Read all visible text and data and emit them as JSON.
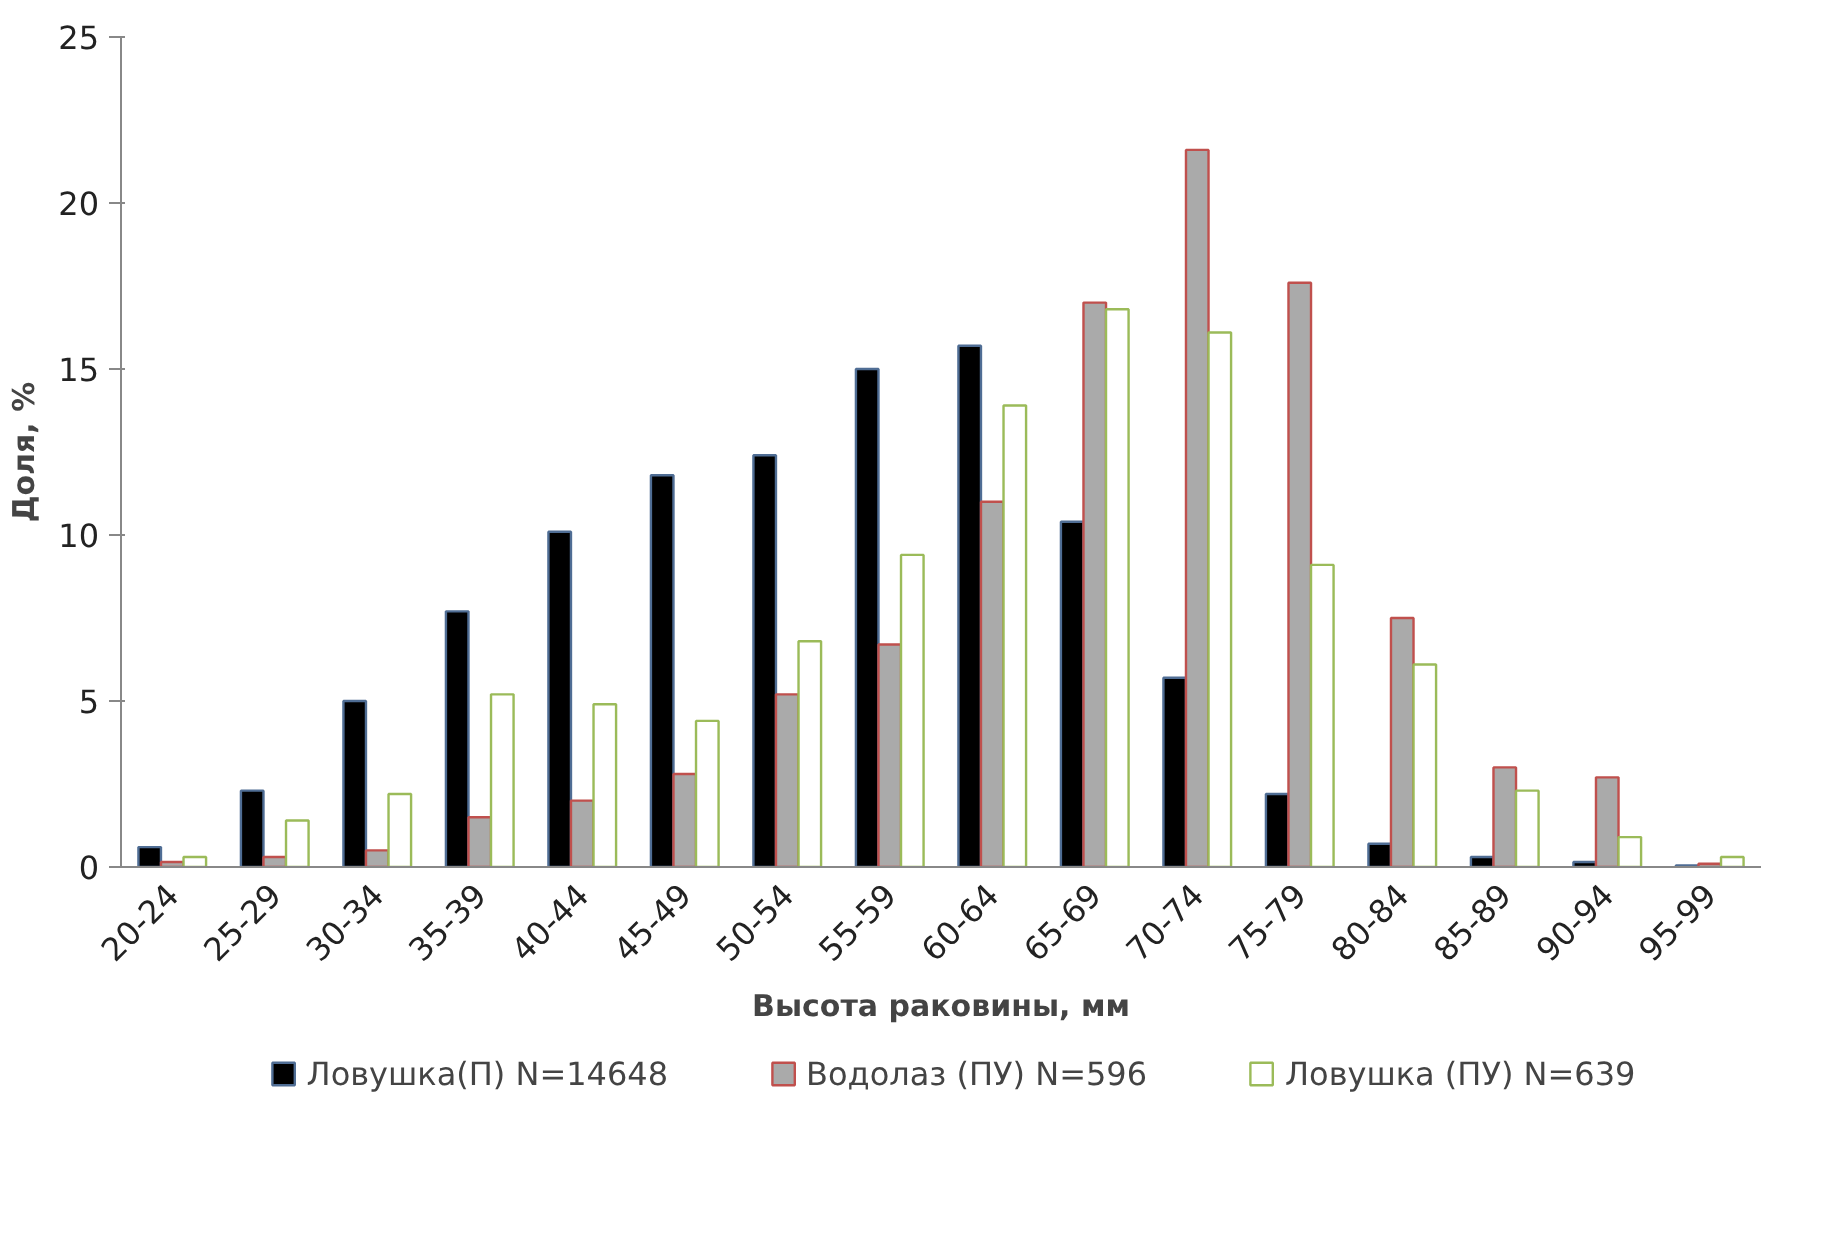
{
  "chart_data": {
    "type": "bar",
    "xlabel": "Высота раковины, мм",
    "ylabel": "Доля, %",
    "categories": [
      "20-24",
      "25-29",
      "30-34",
      "35-39",
      "40-44",
      "45-49",
      "50-54",
      "55-59",
      "60-64",
      "65-69",
      "70-74",
      "75-79",
      "80-84",
      "85-89",
      "90-94",
      "95-99"
    ],
    "series": [
      {
        "name": "Ловушка(П) N=14648",
        "color": "#000000",
        "values": [
          0.6,
          2.3,
          5.0,
          7.7,
          10.1,
          11.8,
          12.4,
          15.0,
          15.7,
          10.4,
          5.7,
          2.2,
          0.7,
          0.3,
          0.15,
          0.05
        ]
      },
      {
        "name": "Водолаз (ПУ) N=596",
        "color": "#aaaaaa",
        "values": [
          0.15,
          0.3,
          0.5,
          1.5,
          2.0,
          2.8,
          5.2,
          6.7,
          11.0,
          17.0,
          21.6,
          17.6,
          7.5,
          3.0,
          2.7,
          0.1
        ]
      },
      {
        "name": "Ловушка (ПУ) N=639",
        "color": "#ffffff",
        "values": [
          0.3,
          1.4,
          2.2,
          5.2,
          4.9,
          4.4,
          6.8,
          9.4,
          13.9,
          16.8,
          16.1,
          9.1,
          6.1,
          2.3,
          0.9,
          0.3
        ]
      }
    ],
    "ylim": [
      0,
      25
    ],
    "yticks": [
      0,
      5,
      10,
      15,
      20,
      25
    ],
    "grid": false,
    "legend": "bottom"
  }
}
